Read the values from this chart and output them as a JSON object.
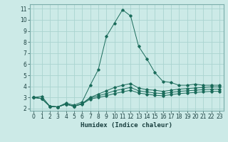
{
  "title": "",
  "xlabel": "Humidex (Indice chaleur)",
  "bg_color": "#cceae7",
  "grid_color": "#aad4d0",
  "line_color": "#1a6b5a",
  "xlim": [
    -0.5,
    23.5
  ],
  "ylim": [
    1.8,
    11.4
  ],
  "xticks": [
    0,
    1,
    2,
    3,
    4,
    5,
    6,
    7,
    8,
    9,
    10,
    11,
    12,
    13,
    14,
    15,
    16,
    17,
    18,
    19,
    20,
    21,
    22,
    23
  ],
  "yticks": [
    2,
    3,
    4,
    5,
    6,
    7,
    8,
    9,
    10,
    11
  ],
  "series": [
    [
      3.0,
      3.1,
      2.2,
      2.15,
      2.5,
      2.3,
      2.6,
      4.1,
      5.5,
      8.5,
      9.7,
      10.9,
      10.35,
      7.6,
      6.5,
      5.25,
      4.45,
      4.35,
      4.1,
      4.1,
      4.2,
      4.1,
      4.1,
      4.1
    ],
    [
      3.0,
      2.9,
      2.2,
      2.15,
      2.4,
      2.2,
      2.45,
      3.0,
      3.3,
      3.6,
      3.9,
      4.1,
      4.25,
      3.85,
      3.7,
      3.65,
      3.55,
      3.65,
      3.75,
      3.8,
      3.85,
      3.9,
      3.95,
      3.95
    ],
    [
      3.0,
      2.9,
      2.2,
      2.15,
      2.4,
      2.2,
      2.45,
      2.95,
      3.15,
      3.35,
      3.6,
      3.75,
      3.9,
      3.6,
      3.5,
      3.4,
      3.35,
      3.45,
      3.55,
      3.6,
      3.65,
      3.7,
      3.75,
      3.75
    ],
    [
      3.0,
      2.9,
      2.2,
      2.15,
      2.4,
      2.2,
      2.4,
      2.85,
      3.0,
      3.15,
      3.35,
      3.5,
      3.65,
      3.4,
      3.3,
      3.2,
      3.15,
      3.25,
      3.35,
      3.4,
      3.45,
      3.5,
      3.55,
      3.55
    ]
  ],
  "tick_fontsize": 5.5,
  "xlabel_fontsize": 6.5
}
